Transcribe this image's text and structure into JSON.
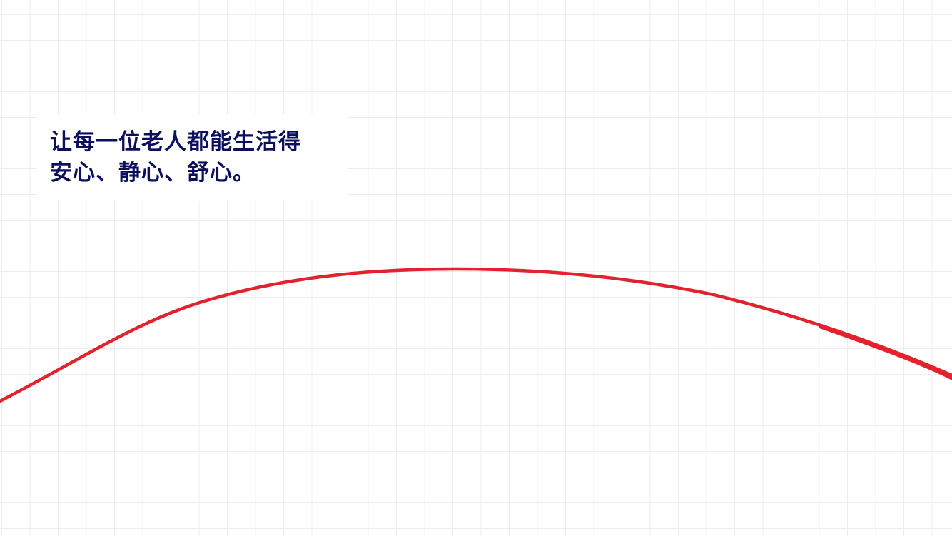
{
  "headline": {
    "line1": "让每一位老人都能生活得",
    "line2": "安心、静心、舒心。"
  },
  "colors": {
    "headline": "#0c0f5e",
    "curve": "#e4222e",
    "grid": "#ececf0",
    "background": "#ffffff"
  }
}
